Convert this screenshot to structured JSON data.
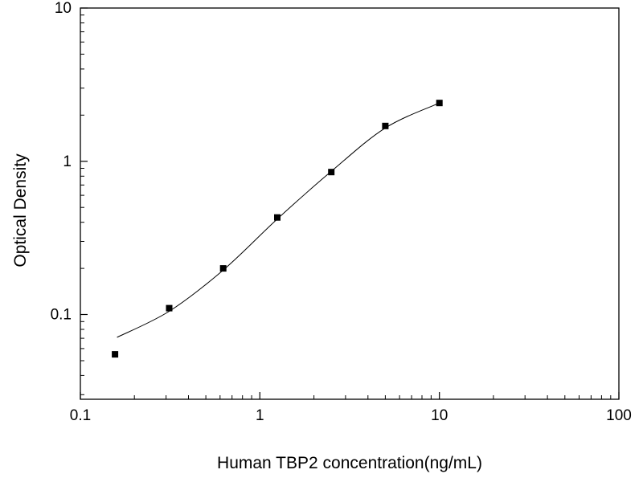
{
  "chart_data": {
    "type": "scatter",
    "title": "",
    "xlabel": "Human TBP2 concentration(ng/mL)",
    "ylabel": "Optical Density",
    "x_scale": "log",
    "y_scale": "log",
    "xlim": [
      0.1,
      100
    ],
    "ylim": [
      0.028,
      10
    ],
    "x_ticks": [
      {
        "v": 0.1,
        "label": "0.1"
      },
      {
        "v": 1,
        "label": "1"
      },
      {
        "v": 10,
        "label": "10"
      },
      {
        "v": 100,
        "label": "100"
      }
    ],
    "y_ticks": [
      {
        "v": 0.1,
        "label": "0.1"
      },
      {
        "v": 1,
        "label": "1"
      },
      {
        "v": 10,
        "label": "10"
      }
    ],
    "points": [
      {
        "x": 0.156,
        "y": 0.055
      },
      {
        "x": 0.3125,
        "y": 0.11
      },
      {
        "x": 0.625,
        "y": 0.2
      },
      {
        "x": 1.25,
        "y": 0.43
      },
      {
        "x": 2.5,
        "y": 0.85
      },
      {
        "x": 5,
        "y": 1.7
      },
      {
        "x": 10,
        "y": 2.4
      }
    ],
    "curve": [
      {
        "x": 0.16,
        "y": 0.071
      },
      {
        "x": 0.3125,
        "y": 0.105
      },
      {
        "x": 0.625,
        "y": 0.195
      },
      {
        "x": 1.25,
        "y": 0.42
      },
      {
        "x": 2.5,
        "y": 0.86
      },
      {
        "x": 5,
        "y": 1.65
      },
      {
        "x": 10,
        "y": 2.4
      }
    ],
    "marker": {
      "shape": "square",
      "color": "#000000",
      "size": 8
    },
    "line_color": "#000000",
    "frame_color": "#000000",
    "background": "#ffffff",
    "grid": false,
    "legend": false
  }
}
